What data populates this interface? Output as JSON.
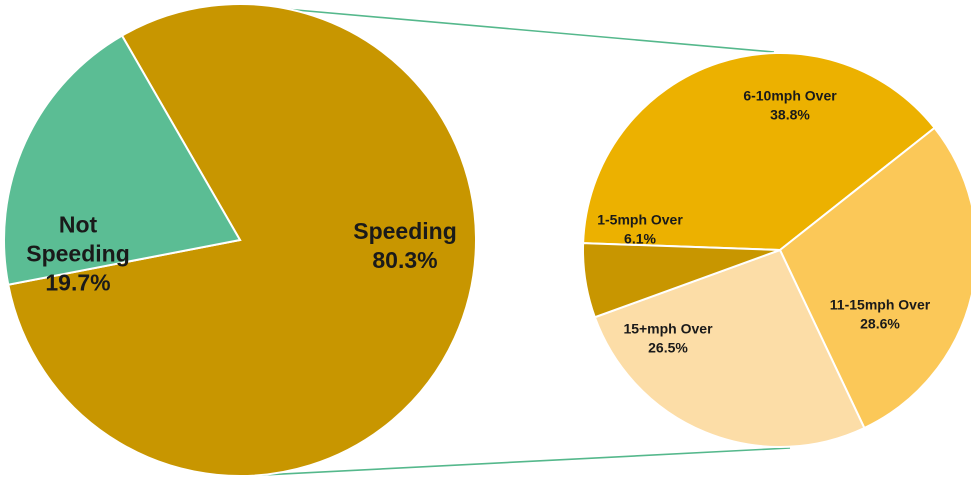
{
  "chart_data": [
    {
      "type": "pie",
      "slices": [
        {
          "label_lines": [
            "Speeding",
            "80.3%"
          ],
          "value": 80.3,
          "color": "#c89600"
        },
        {
          "label_lines": [
            "Not",
            "Speeding",
            "19.7%"
          ],
          "value": 19.7,
          "color": "#5bbd94"
        }
      ]
    },
    {
      "type": "pie",
      "slices": [
        {
          "label_lines": [
            "6-10mph Over",
            "38.8%"
          ],
          "value": 38.8,
          "color": "#ecb100"
        },
        {
          "label_lines": [
            "11-15mph Over",
            "28.6%"
          ],
          "value": 28.6,
          "color": "#fbc858"
        },
        {
          "label_lines": [
            "15+mph Over",
            "26.5%"
          ],
          "value": 26.5,
          "color": "#fcdda7"
        },
        {
          "label_lines": [
            "1-5mph Over",
            "6.1%"
          ],
          "value": 6.1,
          "color": "#c89600"
        }
      ]
    }
  ],
  "colors": {
    "connector": "#55b88c",
    "slice_border": "#ffffff"
  }
}
